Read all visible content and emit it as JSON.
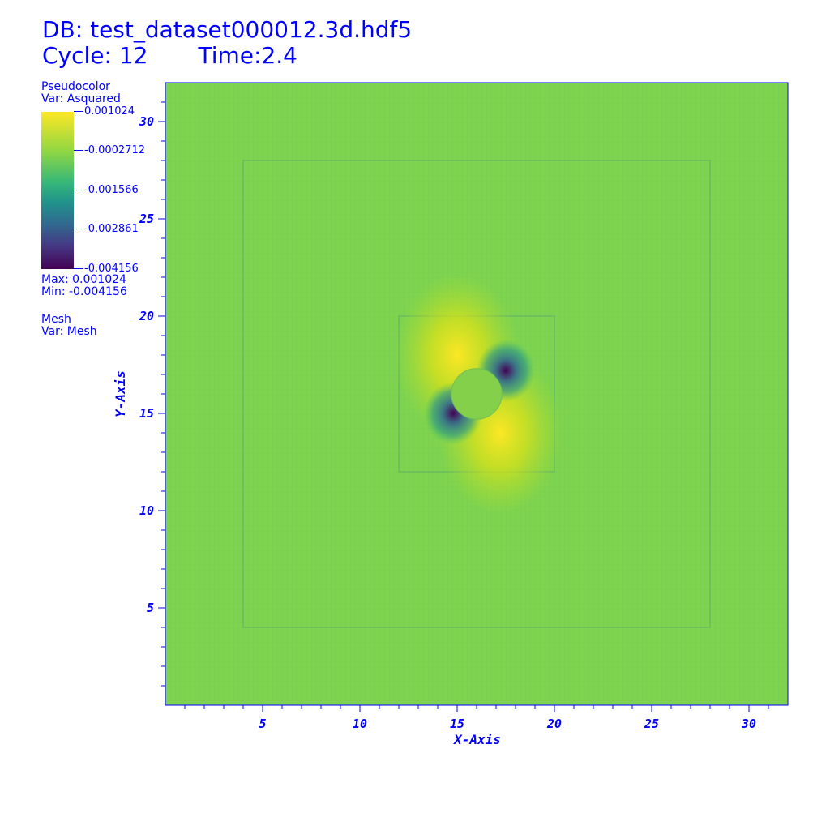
{
  "header": {
    "db_title": "DB: test_dataset000012.3d.hdf5",
    "cycle": "Cycle: 12",
    "time": "Time:2.4"
  },
  "legend": {
    "plot_type": "Pseudocolor",
    "var": "Var: Asquared",
    "ticks": [
      "0.001024",
      "-0.0002712",
      "-0.001566",
      "-0.002861",
      "-0.004156"
    ],
    "max": "Max:  0.001024",
    "min": "Min: -0.004156",
    "mesh_label": "Mesh",
    "mesh_var": "Var: Mesh"
  },
  "colors": {
    "text": "#0000ff",
    "background_field": "#7ed44e",
    "high": "#fde725",
    "low": "#440154"
  },
  "chart_data": {
    "type": "heatmap",
    "title": "DB: test_dataset000012.3d.hdf5",
    "xlabel": "X-Axis",
    "ylabel": "Y-Axis",
    "xlim": [
      0,
      32
    ],
    "ylim": [
      0,
      32
    ],
    "xticks": [
      5,
      10,
      15,
      20,
      25,
      30
    ],
    "yticks": [
      5,
      10,
      15,
      20,
      25,
      30
    ],
    "colormap": "viridis",
    "value_range": [
      -0.004156,
      0.001024
    ],
    "background_value": -0.0002712,
    "features": [
      {
        "kind": "disk",
        "center": [
          16,
          16
        ],
        "radius": 1.3,
        "value": -0.0002712
      },
      {
        "kind": "high-lobe",
        "center": [
          15,
          18
        ],
        "value": 0.001024
      },
      {
        "kind": "high-lobe",
        "center": [
          17.2,
          14
        ],
        "value": 0.001024
      },
      {
        "kind": "low-lobe",
        "center": [
          17.5,
          17.2
        ],
        "value": -0.004156
      },
      {
        "kind": "low-lobe",
        "center": [
          14.8,
          15
        ],
        "value": -0.004156
      }
    ],
    "refinement_boxes": [
      [
        4,
        4,
        28,
        28
      ],
      [
        12,
        12,
        20,
        20
      ]
    ]
  }
}
